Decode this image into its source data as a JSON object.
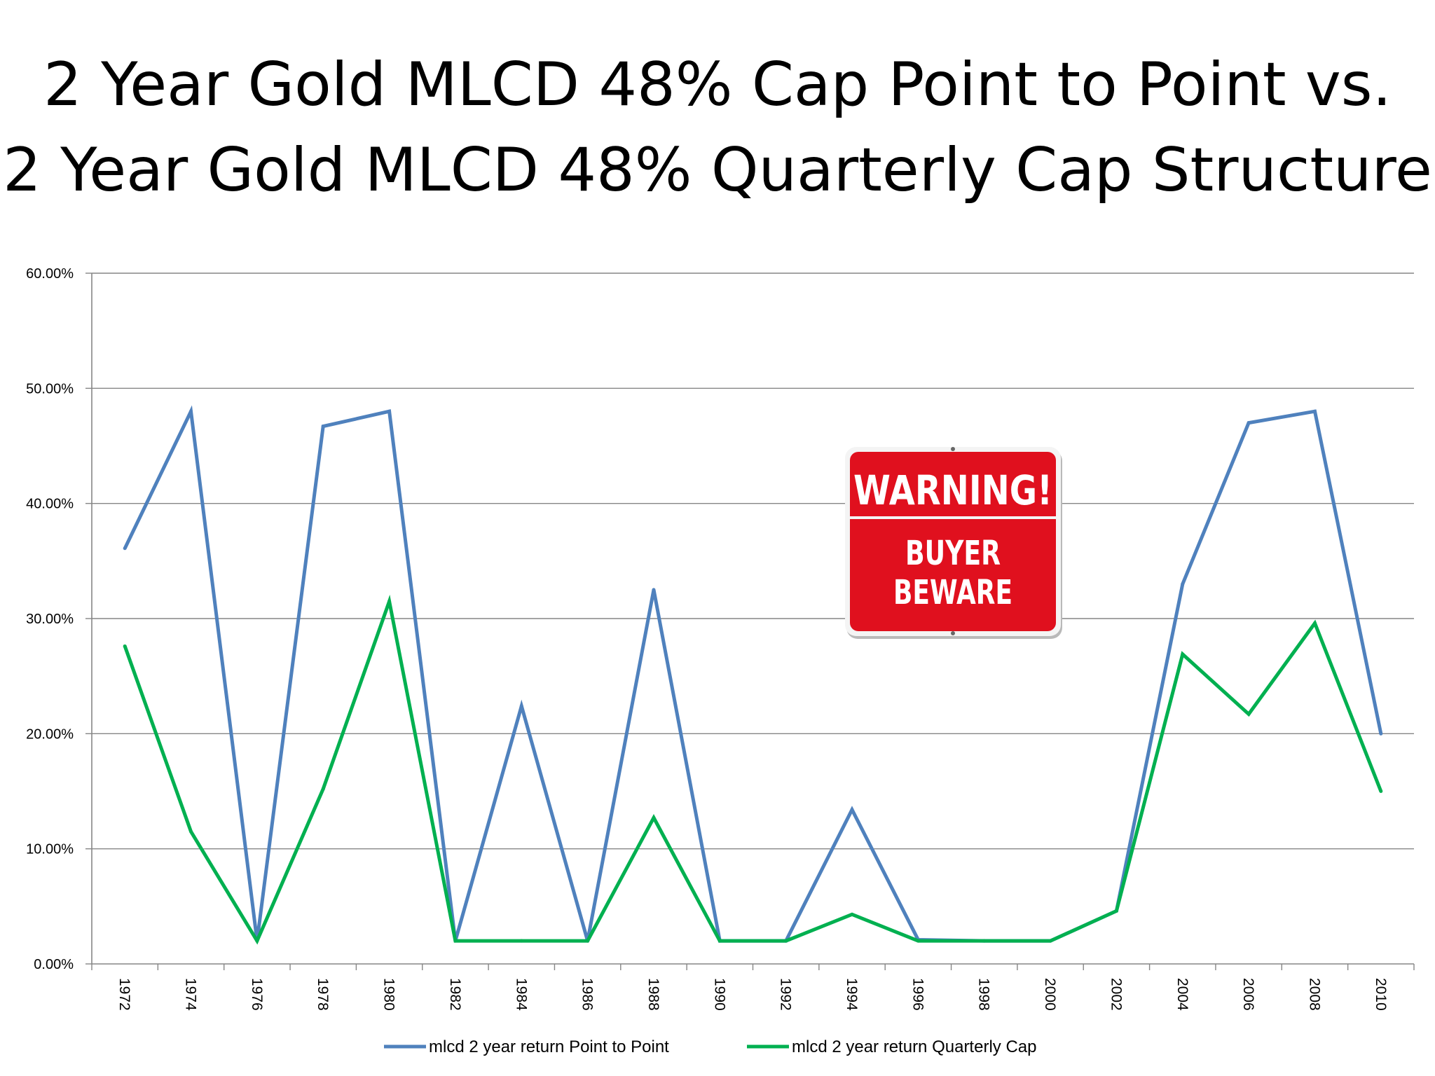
{
  "title": {
    "line1": "2 Year Gold MLCD 48% Cap Point to Point vs.",
    "line2": "2 Year Gold MLCD 48% Quarterly Cap Structure"
  },
  "warning_sign": {
    "headline": "WARNING!",
    "line1": "BUYER",
    "line2": "BEWARE"
  },
  "colors": {
    "series_point_to_point": "#4F81BD",
    "series_quarterly_cap": "#00B050",
    "sign_red": "#E0101E",
    "gridline": "#868686"
  },
  "chart_data": {
    "type": "line",
    "title": "",
    "xlabel": "",
    "ylabel": "",
    "ylim": [
      0,
      0.6
    ],
    "y_ticks": [
      0,
      0.1,
      0.2,
      0.3,
      0.4,
      0.5,
      0.6
    ],
    "y_tick_labels": [
      "0.00%",
      "10.00%",
      "20.00%",
      "30.00%",
      "40.00%",
      "50.00%",
      "60.00%"
    ],
    "grid": true,
    "legend_position": "bottom",
    "categories": [
      "1972",
      "1974",
      "1976",
      "1978",
      "1980",
      "1982",
      "1984",
      "1986",
      "1988",
      "1990",
      "1992",
      "1994",
      "1996",
      "1998",
      "2000",
      "2002",
      "2004",
      "2006",
      "2008",
      "2010"
    ],
    "series": [
      {
        "name": "mlcd 2 year return Point to Point",
        "color": "#4F81BD",
        "values": [
          0.361,
          0.48,
          0.02,
          0.467,
          0.48,
          0.02,
          0.224,
          0.02,
          0.325,
          0.02,
          0.02,
          0.134,
          0.021,
          0.02,
          0.02,
          0.046,
          0.33,
          0.47,
          0.48,
          0.2
        ]
      },
      {
        "name": "mlcd 2 year return Quarterly Cap",
        "color": "#00B050",
        "values": [
          0.276,
          0.115,
          0.02,
          0.152,
          0.315,
          0.02,
          0.02,
          0.02,
          0.127,
          0.02,
          0.02,
          0.043,
          0.02,
          0.02,
          0.02,
          0.046,
          0.269,
          0.217,
          0.296,
          0.15
        ]
      }
    ]
  }
}
